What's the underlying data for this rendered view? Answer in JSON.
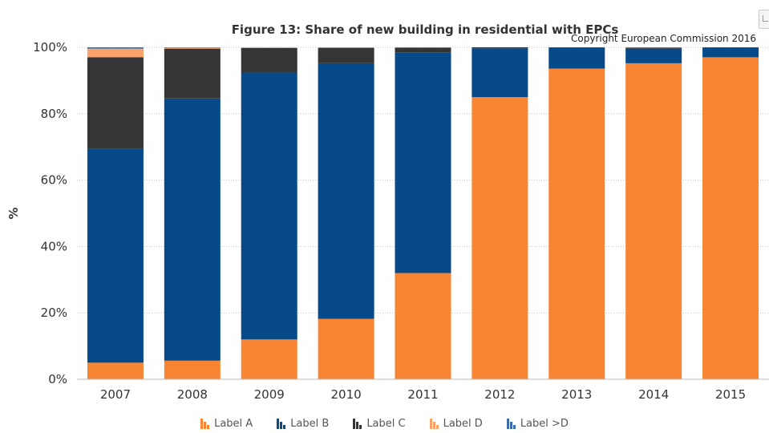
{
  "chart_data": {
    "type": "bar",
    "stacked": true,
    "title": "Figure 13: Share of new building in residential with EPCs",
    "subtitle": "Copyright European Commission 2016",
    "ylabel": "%",
    "xlabel": "",
    "ylim": [
      0,
      100
    ],
    "yticks": [
      "0%",
      "20%",
      "40%",
      "60%",
      "80%",
      "100%"
    ],
    "grid": true,
    "legend_position": "bottom",
    "categories": [
      "2007",
      "2008",
      "2009",
      "2010",
      "2011",
      "2012",
      "2013",
      "2014",
      "2015"
    ],
    "series": [
      {
        "name": "Label A",
        "color": "#F78534",
        "values": [
          5.0,
          5.6,
          12.0,
          18.2,
          32.0,
          85.0,
          93.6,
          95.2,
          97.0
        ]
      },
      {
        "name": "Label B",
        "color": "#074A8A",
        "values": [
          64.4,
          79.0,
          80.4,
          77.0,
          66.5,
          14.7,
          6.2,
          4.4,
          2.9
        ]
      },
      {
        "name": "Label C",
        "color": "#353535",
        "values": [
          27.6,
          15.0,
          7.4,
          4.6,
          1.4,
          0.3,
          0.2,
          0.3,
          0.1
        ]
      },
      {
        "name": "Label D",
        "color": "#F9A26A",
        "values": [
          2.6,
          0.3,
          0.2,
          0.1,
          0.1,
          0.0,
          0.0,
          0.1,
          0.0
        ]
      },
      {
        "name": "Label >D",
        "color": "#3D6DA8",
        "values": [
          0.4,
          0.1,
          0.0,
          0.1,
          0.0,
          0.0,
          0.0,
          0.0,
          0.0
        ]
      }
    ]
  }
}
